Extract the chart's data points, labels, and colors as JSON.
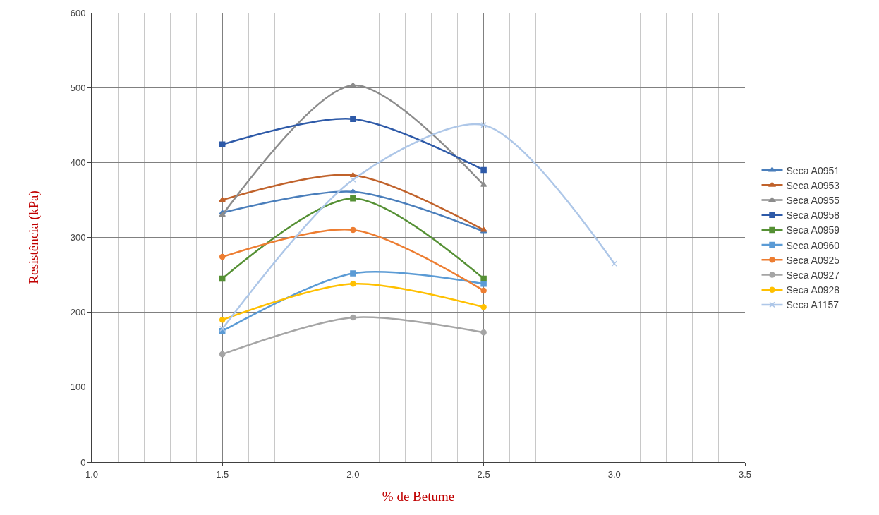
{
  "chart_data": {
    "type": "line",
    "xlabel": "% de Betume",
    "ylabel": "Resistência (kPa)",
    "x": [
      1.5,
      2.0,
      2.5,
      3.0
    ],
    "xlim": [
      1.0,
      3.5
    ],
    "xticks": [
      {
        "value": 1.0,
        "label": "1.0"
      },
      {
        "value": 1.5,
        "label": "1.5"
      },
      {
        "value": 2.0,
        "label": "2.0"
      },
      {
        "value": 2.5,
        "label": "2.5"
      },
      {
        "value": 3.0,
        "label": "3.0"
      },
      {
        "value": 3.5,
        "label": "3.5"
      }
    ],
    "ylim": [
      0,
      600
    ],
    "yticks": [
      0,
      100,
      200,
      300,
      400,
      500,
      600
    ],
    "grid": true,
    "legend": "right",
    "line_style": "solid",
    "series": [
      {
        "name": "Seca A0951",
        "color": "#4a7ebb",
        "marker": "triangle",
        "values": [
          333,
          361,
          308,
          null
        ]
      },
      {
        "name": "Seca A0953",
        "color": "#c0622b",
        "marker": "triangle",
        "values": [
          350,
          383,
          310,
          null
        ]
      },
      {
        "name": "Seca A0955",
        "color": "#8c8c8c",
        "marker": "triangle",
        "values": [
          330,
          503,
          370,
          null
        ]
      },
      {
        "name": "Seca A0958",
        "color": "#2e5aa8",
        "marker": "square",
        "values": [
          424,
          458,
          390,
          null
        ]
      },
      {
        "name": "Seca A0959",
        "color": "#559034",
        "marker": "square",
        "values": [
          245,
          352,
          245,
          null
        ]
      },
      {
        "name": "Seca A0960",
        "color": "#5b9bd5",
        "marker": "square",
        "values": [
          175,
          252,
          238,
          null
        ]
      },
      {
        "name": "Seca A0925",
        "color": "#ed7d31",
        "marker": "circle",
        "values": [
          274,
          310,
          229,
          null
        ]
      },
      {
        "name": "Seca A0927",
        "color": "#a5a5a5",
        "marker": "circle",
        "values": [
          144,
          193,
          173,
          null
        ]
      },
      {
        "name": "Seca A0928",
        "color": "#ffc000",
        "marker": "circle",
        "values": [
          190,
          238,
          207,
          null
        ]
      },
      {
        "name": "Seca A1157",
        "color": "#aec7e8",
        "marker": "cross",
        "values": [
          178,
          377,
          450,
          265
        ]
      }
    ]
  }
}
